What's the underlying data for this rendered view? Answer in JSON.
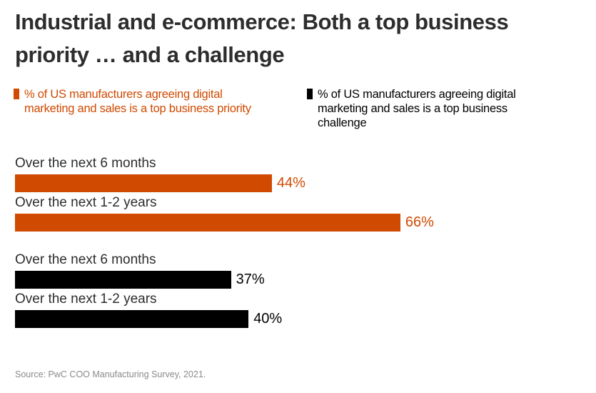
{
  "chart_data": {
    "type": "bar",
    "orientation": "horizontal",
    "title": "Industrial and e-commerce: Both a top business priority … and a challenge",
    "xlim": [
      0,
      100
    ],
    "series": [
      {
        "name": "% of US manufacturers agreeing digital marketing and sales is a top business priority",
        "color": "#d04a02",
        "categories": [
          "Over the next 6 months",
          "Over the next 1-2 years"
        ],
        "values": [
          44,
          66
        ],
        "labels": [
          "44%",
          "66%"
        ]
      },
      {
        "name": "% of US manufacturers agreeing digital marketing and sales is a top business challenge",
        "color": "#000000",
        "categories": [
          "Over the next 6 months",
          "Over the next 1-2 years"
        ],
        "values": [
          37,
          40
        ],
        "labels": [
          "37%",
          "40%"
        ]
      }
    ],
    "legend_position": "top",
    "grid": false
  },
  "title_line1": "Industrial and e-commerce: Both a top business",
  "title_line2": "priority … and a challenge",
  "legend": [
    {
      "line1": "% of US manufacturers agreeing digital",
      "line2": "marketing and sales is a top business priority",
      "line3": ""
    },
    {
      "line1": "% of US manufacturers agreeing digital",
      "line2": "marketing and sales is a top business",
      "line3": "challenge"
    }
  ],
  "source": "Source: PwC COO Manufacturing Survey, 2021."
}
